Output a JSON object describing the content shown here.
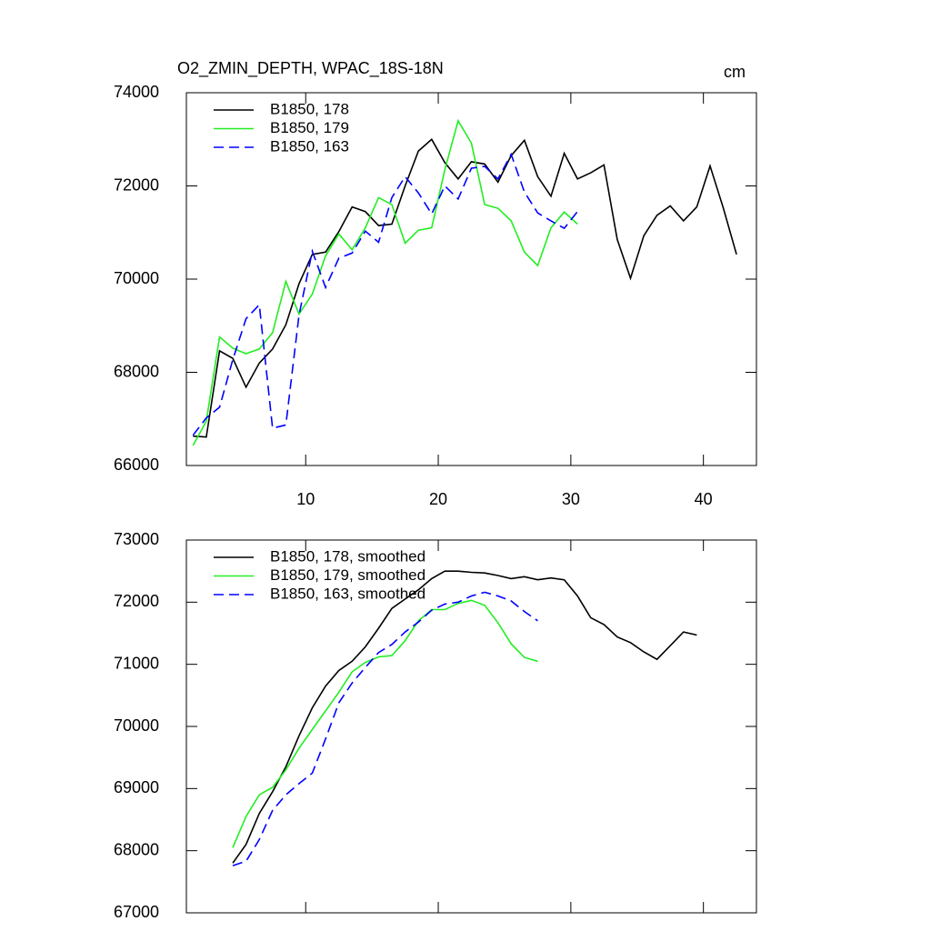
{
  "chart_data": [
    {
      "type": "line",
      "title": "O2_ZMIN_DEPTH, WPAC_18S-18N",
      "units": "cm",
      "x": [
        1.5,
        2.5,
        3.5,
        4.5,
        5.5,
        6.5,
        7.5,
        8.5,
        9.5,
        10.5,
        11.5,
        12.5,
        13.5,
        14.5,
        15.5,
        16.5,
        17.5,
        18.5,
        19.5,
        20.5,
        21.5,
        22.5,
        23.5,
        24.5,
        25.5,
        26.5,
        27.5,
        28.5,
        29.5,
        30.5,
        31.5,
        32.5,
        33.5,
        34.5,
        35.5,
        36.5,
        37.5,
        38.5,
        39.5,
        40.5,
        41.5,
        42.5
      ],
      "series": [
        {
          "name": "B1850, 178",
          "color": "#000000",
          "dash": false,
          "values": [
            66630,
            66610,
            68460,
            68300,
            67680,
            68200,
            68500,
            69020,
            69900,
            70530,
            70580,
            71020,
            71550,
            71450,
            71150,
            71180,
            72000,
            72750,
            73000,
            72500,
            72150,
            72520,
            72470,
            72080,
            72650,
            72980,
            72200,
            71780,
            72700,
            72150,
            72280,
            72450,
            70850,
            70020,
            70930,
            71370,
            71570,
            71250,
            71550,
            72430,
            71530,
            70530
          ]
        },
        {
          "name": "B1850, 179",
          "color": "#22ee22",
          "dash": false,
          "values": [
            66430,
            66950,
            68760,
            68520,
            68400,
            68500,
            68850,
            69950,
            69250,
            69680,
            70500,
            70970,
            70630,
            71100,
            71750,
            71600,
            70770,
            71050,
            71100,
            72350,
            73400,
            72920,
            71600,
            71520,
            71250,
            70580,
            70290,
            71100,
            71440,
            71180,
            null,
            null,
            null,
            null,
            null,
            null,
            null,
            null,
            null,
            null,
            null,
            null
          ]
        },
        {
          "name": "B1850, 163",
          "color": "#0000ff",
          "dash": true,
          "values": [
            66650,
            67020,
            67250,
            68270,
            69150,
            69450,
            66800,
            66870,
            69230,
            70600,
            69820,
            70450,
            70560,
            71030,
            70790,
            71750,
            72200,
            71850,
            71400,
            72000,
            71720,
            72380,
            72420,
            72150,
            72680,
            71870,
            71420,
            71250,
            71090,
            71450,
            null,
            null,
            null,
            null,
            null,
            null,
            null,
            null,
            null,
            null,
            null,
            null
          ]
        }
      ],
      "xlim": [
        1,
        44
      ],
      "ylim": [
        66000,
        74000
      ],
      "xticks": [
        10,
        20,
        30,
        40
      ],
      "yticks": [
        66000,
        68000,
        70000,
        72000,
        74000
      ],
      "show_xtick_labels": true
    },
    {
      "type": "line",
      "x": [
        4.5,
        5.5,
        6.5,
        7.5,
        8.5,
        9.5,
        10.5,
        11.5,
        12.5,
        13.5,
        14.5,
        15.5,
        16.5,
        17.5,
        18.5,
        19.5,
        20.5,
        21.5,
        22.5,
        23.5,
        24.5,
        25.5,
        26.5,
        27.5,
        28.5,
        29.5,
        30.5,
        31.5,
        32.5,
        33.5,
        34.5,
        35.5,
        36.5,
        37.5,
        38.5,
        39.5
      ],
      "series": [
        {
          "name": "B1850, 178, smoothed",
          "color": "#000000",
          "dash": false,
          "values": [
            67800,
            68100,
            68600,
            68950,
            69350,
            69850,
            70300,
            70650,
            70900,
            71050,
            71280,
            71580,
            71900,
            72050,
            72200,
            72380,
            72500,
            72500,
            72480,
            72470,
            72430,
            72380,
            72410,
            72360,
            72390,
            72360,
            72100,
            71750,
            71640,
            71440,
            71350,
            71200,
            71080,
            71300,
            71520,
            71470
          ]
        },
        {
          "name": "B1850, 179, smoothed",
          "color": "#22ee22",
          "dash": false,
          "values": [
            68050,
            68550,
            68900,
            69020,
            69300,
            69650,
            69950,
            70250,
            70550,
            70880,
            71030,
            71120,
            71140,
            71380,
            71700,
            71880,
            71880,
            71980,
            72030,
            71950,
            71670,
            71330,
            71110,
            71050,
            null,
            null,
            null,
            null,
            null,
            null,
            null,
            null,
            null,
            null,
            null,
            null
          ]
        },
        {
          "name": "B1850, 163, smoothed",
          "color": "#0000ff",
          "dash": true,
          "values": [
            67760,
            67830,
            68180,
            68650,
            68900,
            69080,
            69250,
            69800,
            70380,
            70700,
            70950,
            71190,
            71320,
            71520,
            71680,
            71870,
            71970,
            72000,
            72100,
            72160,
            72100,
            72020,
            71850,
            71700,
            null,
            null,
            null,
            null,
            null,
            null,
            null,
            null,
            null,
            null,
            null,
            null
          ]
        }
      ],
      "xlim": [
        1,
        44
      ],
      "ylim": [
        67000,
        73000
      ],
      "xticks": [
        10,
        20,
        30,
        40
      ],
      "yticks": [
        67000,
        68000,
        69000,
        70000,
        71000,
        72000,
        73000
      ],
      "show_xtick_labels": false
    }
  ]
}
